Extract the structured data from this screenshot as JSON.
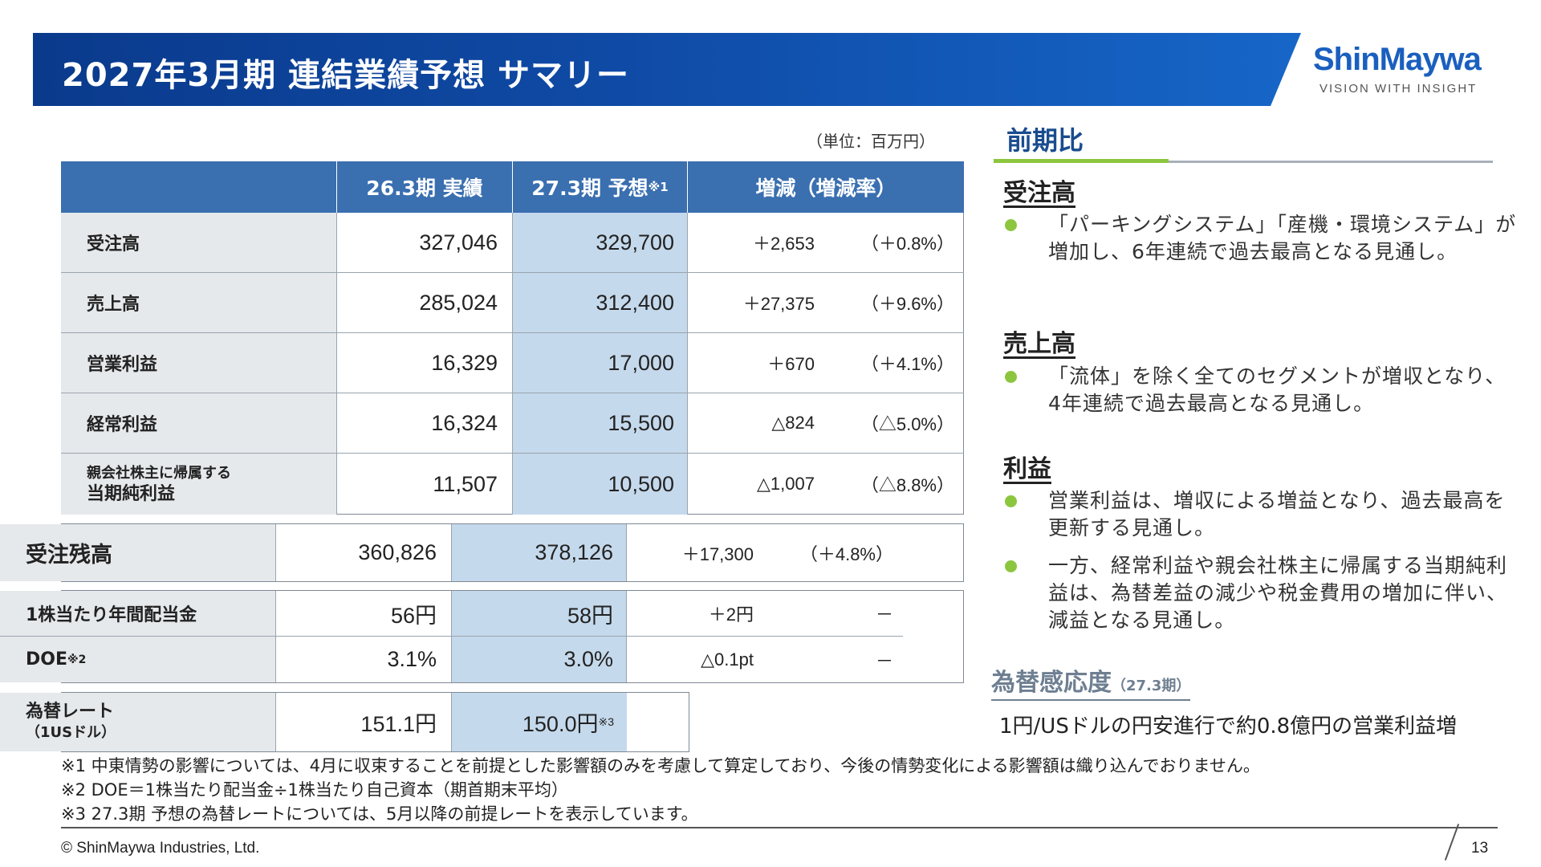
{
  "header": {
    "title": "2027年3月期 連結業績予想 サマリー",
    "logo_name": "ShinMaywa",
    "logo_tagline": "VISION WITH INSIGHT"
  },
  "table": {
    "unit": "（単位：百万円）",
    "columns": {
      "actual": "26.3期 実績",
      "forecast": "27.3期 予想",
      "forecast_note": "※1",
      "change": "増減（増減率）"
    },
    "rows": [
      {
        "label": "受注高",
        "actual": "327,046",
        "forecast": "329,700",
        "diff": "＋2,653",
        "rate": "（＋0.8%）"
      },
      {
        "label": "売上高",
        "actual": "285,024",
        "forecast": "312,400",
        "diff": "＋27,375",
        "rate": "（＋9.6%）"
      },
      {
        "label": "営業利益",
        "actual": "16,329",
        "forecast": "17,000",
        "diff": "＋670",
        "rate": "（＋4.1%）"
      },
      {
        "label": "経常利益",
        "actual": "16,324",
        "forecast": "15,500",
        "diff": "△824",
        "rate": "（△5.0%）"
      },
      {
        "label_line1": "親会社株主に帰属する",
        "label_line2": "当期純利益",
        "actual": "11,507",
        "forecast": "10,500",
        "diff": "△1,007",
        "rate": "（△8.8%）"
      }
    ],
    "backlog": {
      "label": "受注残高",
      "actual": "360,826",
      "forecast": "378,126",
      "diff": "＋17,300",
      "rate": "（＋4.8%）"
    },
    "dividend": {
      "label": "1株当たり年間配当金",
      "actual": "56円",
      "forecast": "58円",
      "diff": "＋2円",
      "rate": "－"
    },
    "doe": {
      "label": "DOE",
      "note": "※2",
      "actual": "3.1%",
      "forecast": "3.0%",
      "diff": "△0.1pt",
      "rate": "－"
    },
    "fx": {
      "label_line1": "為替レート",
      "label_line2": "（1USドル）",
      "actual": "151.1円",
      "forecast": "150.0円",
      "forecast_note": "※3"
    }
  },
  "comparison": {
    "title": "前期比",
    "orders": {
      "title": "受注高",
      "bullet": "「パーキングシステム」「産機・環境システム」が増加し、6年連続で過去最高となる見通し。"
    },
    "sales": {
      "title": "売上高",
      "bullet": "「流体」を除く全てのセグメントが増収となり、4年連続で過去最高となる見通し。"
    },
    "profit": {
      "title": "利益",
      "bullet1": "営業利益は、増収による増益となり、過去最高を更新する見通し。",
      "bullet2": "一方、経常利益や親会社株主に帰属する当期純利益は、為替差益の減少や税金費用の増加に伴い、減益となる見通し。"
    },
    "fx_sensitivity": {
      "title": "為替感応度",
      "period": "（27.3期）",
      "text": "1円/USドルの円安進行で約0.8億円の営業利益増"
    }
  },
  "footnotes": {
    "n1": "※1 中東情勢の影響については、4月に収束することを前提とした影響額のみを考慮して算定しており、今後の情勢変化による影響額は織り込んでおりません。",
    "n2": "※2 DOE＝1株当たり配当金÷1株当たり自己資本（期首期末平均）",
    "n3": "※3 27.3期 予想の為替レートについては、5月以降の前提レートを表示しています。"
  },
  "footer": {
    "copyright": "© ShinMaywa Industries, Ltd.",
    "page": "13"
  },
  "colors": {
    "header_blue": "#0f4aa5",
    "table_header": "#3a6fb0",
    "forecast_column": "#c5d9ec",
    "label_column": "#e6e9ec",
    "accent_green": "#8cc63f"
  }
}
